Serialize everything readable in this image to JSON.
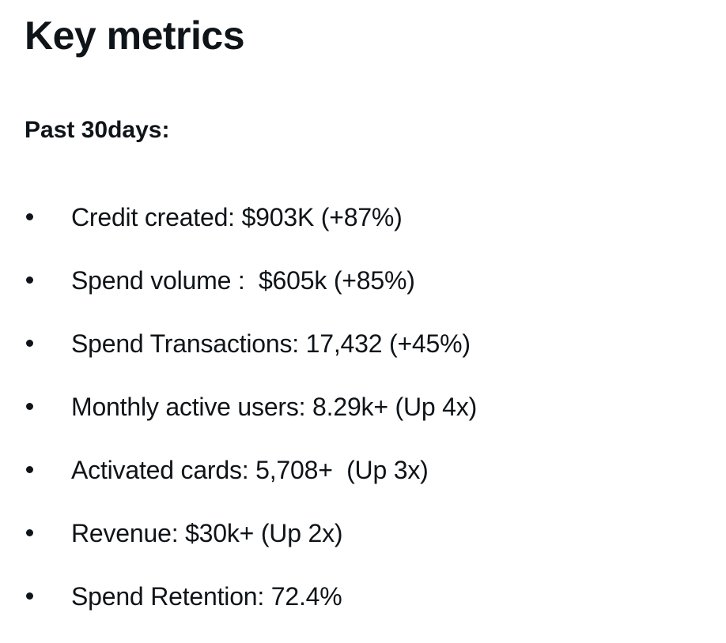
{
  "title": "Key metrics",
  "subtitle": "Past 30days:",
  "metrics": [
    {
      "text": "Credit created: $903K (+87%)"
    },
    {
      "text": "Spend volume :  $605k (+85%)"
    },
    {
      "text": "Spend Transactions: 17,432 (+45%)"
    },
    {
      "text": "Monthly active users: 8.29k+ (Up 4x)"
    },
    {
      "text": "Activated cards: 5,708+  (Up 3x)"
    },
    {
      "text": "Revenue: $30k+ (Up 2x)"
    },
    {
      "text": "Spend Retention: 72.4%"
    }
  ]
}
